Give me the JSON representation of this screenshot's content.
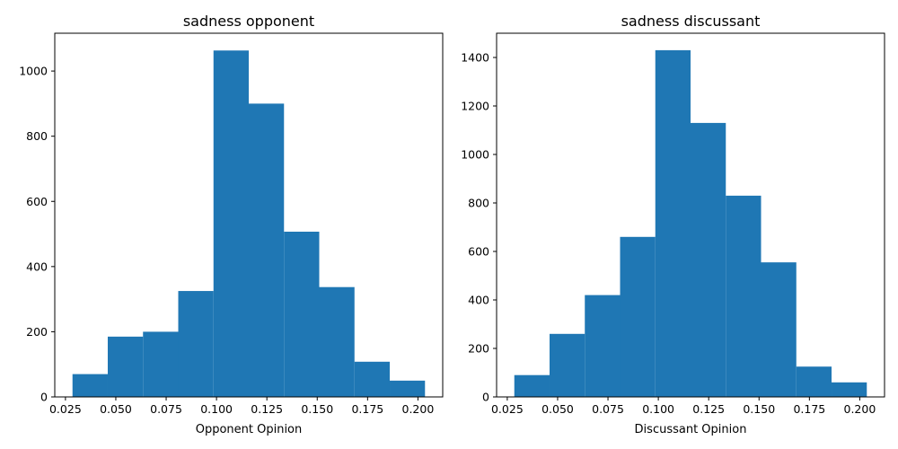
{
  "chart_data": [
    {
      "type": "bar",
      "title": "sadness opponent",
      "xlabel": "Opponent Opinion",
      "ylabel": "",
      "bin_edges": [
        0.0285,
        0.046,
        0.0635,
        0.081,
        0.0985,
        0.116,
        0.1335,
        0.151,
        0.1685,
        0.186,
        0.2035
      ],
      "values": [
        70,
        185,
        200,
        325,
        1063,
        900,
        507,
        337,
        108,
        50
      ],
      "xlim": [
        0.0197,
        0.2123
      ],
      "ylim": [
        0,
        1116
      ],
      "xticks": [
        "0.025",
        "0.050",
        "0.075",
        "0.100",
        "0.125",
        "0.150",
        "0.175",
        "0.200"
      ],
      "xtick_values": [
        0.025,
        0.05,
        0.075,
        0.1,
        0.125,
        0.15,
        0.175,
        0.2
      ],
      "yticks": [
        "0",
        "200",
        "400",
        "600",
        "800",
        "1000"
      ],
      "ytick_values": [
        0,
        200,
        400,
        600,
        800,
        1000
      ],
      "color": "#1f77b4",
      "grid": false
    },
    {
      "type": "bar",
      "title": "sadness discussant",
      "xlabel": "Discussant Opinion",
      "ylabel": "",
      "bin_edges": [
        0.0285,
        0.046,
        0.0635,
        0.081,
        0.0985,
        0.116,
        0.1335,
        0.151,
        0.1685,
        0.186,
        0.2035
      ],
      "values": [
        90,
        260,
        420,
        660,
        1430,
        1130,
        830,
        555,
        125,
        60
      ],
      "xlim": [
        0.0197,
        0.2123
      ],
      "ylim": [
        0,
        1500
      ],
      "xticks": [
        "0.025",
        "0.050",
        "0.075",
        "0.100",
        "0.125",
        "0.150",
        "0.175",
        "0.200"
      ],
      "xtick_values": [
        0.025,
        0.05,
        0.075,
        0.1,
        0.125,
        0.15,
        0.175,
        0.2
      ],
      "yticks": [
        "0",
        "200",
        "400",
        "600",
        "800",
        "1000",
        "1200",
        "1400"
      ],
      "ytick_values": [
        0,
        200,
        400,
        600,
        800,
        1000,
        1200,
        1400
      ],
      "color": "#1f77b4",
      "grid": false
    }
  ]
}
